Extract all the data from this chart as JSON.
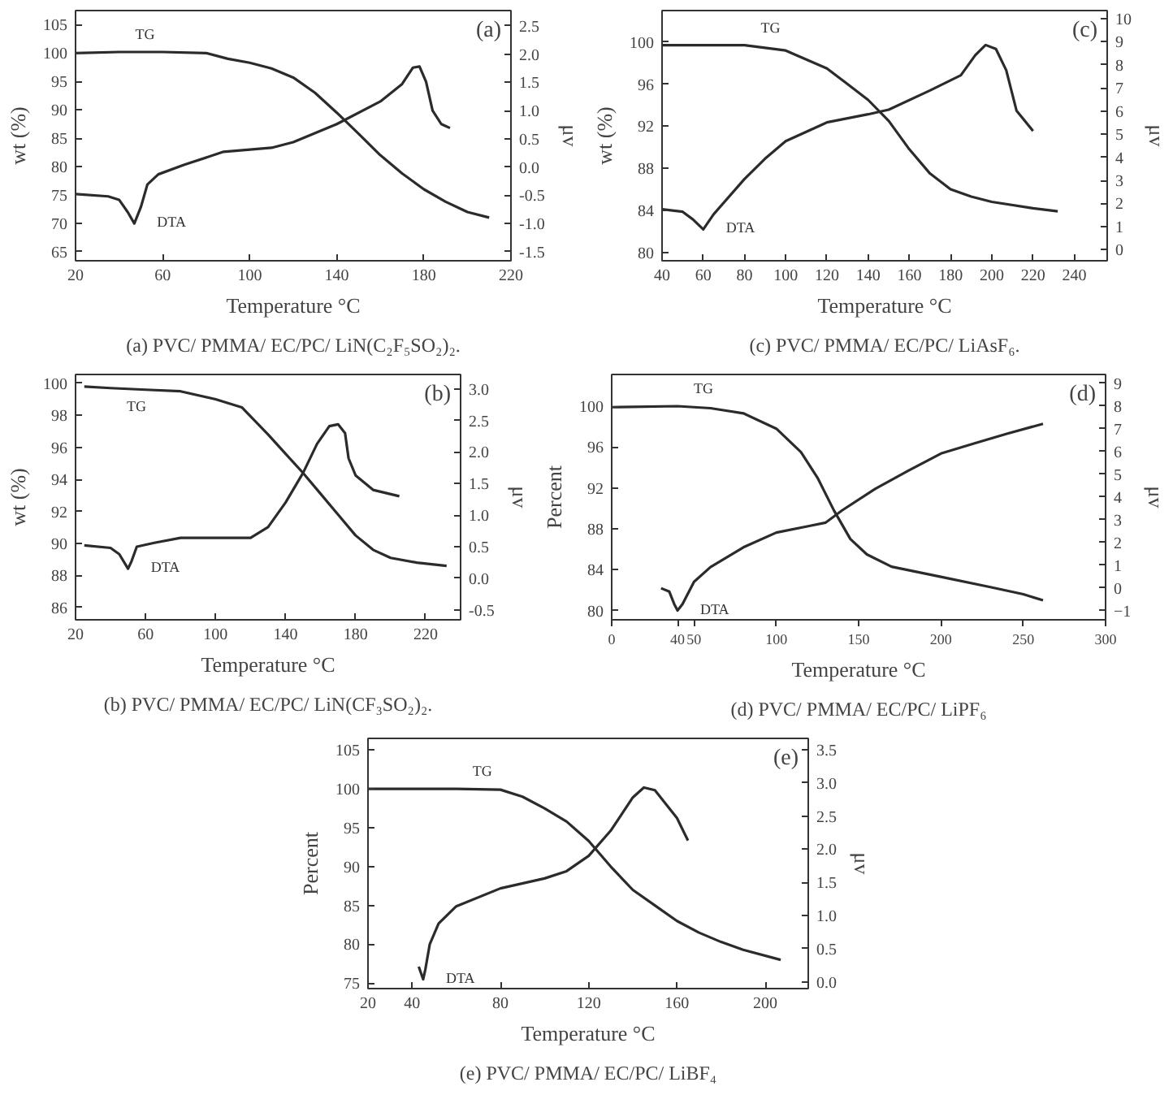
{
  "chart_data": [
    {
      "type": "line",
      "title": "(a) PVC/ PMMA/ EC/PC/ LiN(C₂F₅SO₂)₂.",
      "xlabel": "Temperature °C",
      "ylabel": "wt (%)",
      "y2label": "μv",
      "annotations": [
        "(a)"
      ],
      "xlim": [
        20,
        220
      ],
      "xticks": [
        20,
        60,
        100,
        140,
        180,
        220
      ],
      "ylim": [
        63.4,
        107.5
      ],
      "yticks": [
        65,
        70,
        75,
        80,
        85,
        90,
        95,
        100,
        105
      ],
      "y2lim": [
        -1.66,
        2.77
      ],
      "y2ticks": [
        {
          "value": -1.5,
          "label": "-1.5"
        },
        {
          "value": -1,
          "label": "-1.0"
        },
        {
          "value": -0.5,
          "label": "-0.5"
        },
        {
          "value": 0,
          "label": "0.0"
        },
        {
          "value": 0.5,
          "label": "0.5"
        },
        {
          "value": 1,
          "label": "1.0"
        },
        {
          "value": 1.5,
          "label": "1.5"
        },
        {
          "value": 2,
          "label": "2.0"
        },
        {
          "value": 2.5,
          "label": "2.5"
        }
      ],
      "grid": false,
      "series": [
        {
          "name": "TG",
          "color": "#2b2b2b",
          "x": [
            20,
            40,
            60,
            80,
            90,
            100,
            110,
            120,
            130,
            140,
            150,
            160,
            170,
            180,
            190,
            200,
            210
          ],
          "values": [
            100,
            100.2,
            100.2,
            100,
            99,
            98.3,
            97.3,
            95.7,
            93,
            89.5,
            85.8,
            82,
            78.8,
            76,
            73.8,
            72,
            71
          ]
        },
        {
          "name": "DTA",
          "color": "#2b2b2b",
          "axis": "y2",
          "x": [
            20,
            35,
            40,
            44,
            47,
            50,
            53,
            58,
            70,
            88,
            110,
            120,
            140,
            160,
            170,
            175,
            178,
            181,
            184,
            188,
            192
          ],
          "values": [
            -0.48,
            -0.52,
            -0.58,
            -0.8,
            -1.0,
            -0.71,
            -0.31,
            -0.13,
            0.04,
            0.27,
            0.34,
            0.44,
            0.76,
            1.16,
            1.47,
            1.76,
            1.78,
            1.51,
            1.0,
            0.76,
            0.69
          ]
        }
      ]
    },
    {
      "type": "line",
      "title": "(c) PVC/ PMMA/ EC/PC/ LiAsF₆.",
      "xlabel": "Temperature °C",
      "ylabel": "wt (%)",
      "y2label": "μv",
      "annotations": [
        "(c)"
      ],
      "xlim": [
        40,
        256
      ],
      "xticks": [
        40,
        60,
        80,
        100,
        120,
        140,
        160,
        180,
        200,
        220,
        240
      ],
      "ylim": [
        79.2,
        103
      ],
      "yticks": [
        80,
        84,
        88,
        92,
        96,
        100
      ],
      "y2lim": [
        -0.48,
        10.35
      ],
      "y2ticks": [
        0,
        1,
        2,
        3,
        4,
        5,
        6,
        7,
        8,
        9,
        10
      ],
      "grid": false,
      "series": [
        {
          "name": "TG",
          "color": "#2b2b2b",
          "x": [
            40,
            80,
            100,
            120,
            130,
            140,
            150,
            160,
            170,
            180,
            190,
            200,
            220,
            232
          ],
          "values": [
            99.7,
            99.7,
            99.2,
            97.5,
            96,
            94.5,
            92.5,
            89.8,
            87.5,
            86,
            85.3,
            84.8,
            84.2,
            83.9
          ]
        },
        {
          "name": "DTA",
          "color": "#2b2b2b",
          "axis": "y2",
          "x": [
            40,
            50,
            55,
            60,
            65,
            80,
            90,
            100,
            120,
            140,
            150,
            170,
            185,
            192,
            197,
            202,
            207,
            212,
            220
          ],
          "values": [
            1.75,
            1.64,
            1.31,
            0.88,
            1.53,
            3.06,
            3.94,
            4.7,
            5.51,
            5.86,
            6.06,
            6.89,
            7.55,
            8.42,
            8.86,
            8.69,
            7.77,
            6.02,
            5.14
          ]
        }
      ]
    },
    {
      "type": "line",
      "title": "(b) PVC/ PMMA/ EC/PC/ LiN(CF₃SO₂)₂.",
      "xlabel": "Temperature °C",
      "ylabel": "wt (%)",
      "y2label": "μv",
      "annotations": [
        "(b)"
      ],
      "xlim": [
        20,
        240
      ],
      "xticks": [
        20,
        60,
        100,
        140,
        180,
        220
      ],
      "ylim": [
        85.23,
        100.55
      ],
      "yticks": [
        86,
        88,
        90,
        92,
        94,
        96,
        98,
        100
      ],
      "y2lim": [
        -0.66,
        3.23
      ],
      "y2ticks": [
        {
          "value": -0.5,
          "label": "-0.5"
        },
        {
          "value": 0,
          "label": "0.0"
        },
        {
          "value": 0.5,
          "label": "0.5"
        },
        {
          "value": 1,
          "label": "1.0"
        },
        {
          "value": 1.5,
          "label": "1.5"
        },
        {
          "value": 2,
          "label": "2.0"
        },
        {
          "value": 2.5,
          "label": "2.5"
        },
        {
          "value": 3,
          "label": "3.0"
        }
      ],
      "grid": false,
      "series": [
        {
          "name": "TG",
          "color": "#2b2b2b",
          "x": [
            25,
            40,
            60,
            80,
            100,
            115,
            130,
            140,
            150,
            160,
            170,
            180,
            190,
            200,
            215,
            232
          ],
          "values": [
            99.8,
            99.7,
            99.6,
            99.5,
            99,
            98.5,
            96.8,
            95.6,
            94.4,
            93.1,
            91.8,
            90.5,
            89.6,
            89.1,
            88.8,
            88.6
          ]
        },
        {
          "name": "DTA",
          "color": "#2b2b2b",
          "axis": "y2",
          "x": [
            25,
            40,
            45,
            50,
            52,
            55,
            65,
            80,
            100,
            120,
            130,
            140,
            150,
            158,
            165,
            170,
            174,
            176,
            180,
            190,
            205
          ],
          "values": [
            0.52,
            0.48,
            0.38,
            0.15,
            0.27,
            0.5,
            0.56,
            0.64,
            0.64,
            0.64,
            0.81,
            1.2,
            1.67,
            2.13,
            2.41,
            2.44,
            2.3,
            1.9,
            1.63,
            1.4,
            1.3
          ]
        }
      ]
    },
    {
      "type": "line",
      "title": "(d) PVC/ PMMA/ EC/PC/ LiPF₆",
      "xlabel": "Temperature °C",
      "ylabel": "Percent",
      "y2label": "μv",
      "annotations": [
        "(d)"
      ],
      "xlim": [
        0,
        300
      ],
      "xticks": [
        0,
        {
          "value": 40,
          "label": "40"
        },
        50,
        100,
        150,
        200,
        250,
        300
      ],
      "ylim": [
        79.1,
        103.1
      ],
      "yticks": [
        80,
        84,
        88,
        92,
        96,
        100
      ],
      "y2lim": [
        -1.41,
        9.39
      ],
      "y2ticks": [
        -1,
        0,
        1,
        2,
        3,
        4,
        5,
        6,
        7,
        8,
        9
      ],
      "grid": false,
      "series": [
        {
          "name": "TG",
          "color": "#2b2b2b",
          "x": [
            0,
            40,
            60,
            80,
            100,
            115,
            125,
            135,
            145,
            155,
            170,
            200,
            230,
            250,
            262
          ],
          "values": [
            99.9,
            100,
            99.8,
            99.3,
            97.8,
            95.5,
            93,
            89.8,
            87,
            85.5,
            84.3,
            83.3,
            82.3,
            81.6,
            81
          ]
        },
        {
          "name": "DTA",
          "color": "#2b2b2b",
          "axis": "y2",
          "x": [
            30,
            35,
            38,
            40,
            43,
            50,
            60,
            80,
            100,
            120,
            130,
            140,
            160,
            180,
            200,
            220,
            240,
            262
          ],
          "values": [
            -0.02,
            -0.17,
            -0.72,
            -1.0,
            -0.72,
            0.26,
            0.91,
            1.78,
            2.43,
            2.72,
            2.87,
            3.41,
            4.35,
            5.15,
            5.91,
            6.35,
            6.78,
            7.22
          ]
        }
      ]
    },
    {
      "type": "line",
      "title": "(e) PVC/ PMMA/ EC/PC/ LiBF₄",
      "xlabel": "Temperature °C",
      "ylabel": "Percent",
      "y2label": "μv",
      "annotations": [
        "(e)"
      ],
      "xlim": [
        20,
        219.5
      ],
      "xticks": [
        20,
        40,
        80,
        120,
        160,
        200
      ],
      "ylim": [
        74.3,
        106.5
      ],
      "yticks": [
        75,
        80,
        85,
        90,
        95,
        100,
        105
      ],
      "y2lim": [
        -0.1,
        3.67
      ],
      "y2ticks": [
        {
          "value": 0,
          "label": "0.0"
        },
        {
          "value": 0.5,
          "label": "0.5"
        },
        {
          "value": 1,
          "label": "1.0"
        },
        {
          "value": 1.5,
          "label": "1.5"
        },
        {
          "value": 2,
          "label": "2.0"
        },
        {
          "value": 2.5,
          "label": "2.5"
        },
        {
          "value": 3,
          "label": "3.0"
        },
        {
          "value": 3.5,
          "label": "3.5"
        }
      ],
      "grid": false,
      "series": [
        {
          "name": "TG",
          "color": "#2b2b2b",
          "x": [
            20,
            60,
            80,
            90,
            100,
            110,
            120,
            130,
            140,
            150,
            160,
            170,
            180,
            190,
            207
          ],
          "values": [
            100,
            100,
            99.9,
            99,
            97.5,
            95.8,
            93.3,
            90,
            87,
            85,
            83,
            81.5,
            80.3,
            79.3,
            78
          ]
        },
        {
          "name": "DTA",
          "color": "#2b2b2b",
          "axis": "y2",
          "x": [
            43,
            45,
            46,
            48,
            52,
            60,
            80,
            100,
            110,
            120,
            130,
            140,
            145,
            150,
            160,
            165
          ],
          "values": [
            0.23,
            0.04,
            0.19,
            0.57,
            0.88,
            1.14,
            1.41,
            1.56,
            1.67,
            1.9,
            2.28,
            2.78,
            2.93,
            2.89,
            2.47,
            2.13
          ]
        }
      ]
    }
  ]
}
